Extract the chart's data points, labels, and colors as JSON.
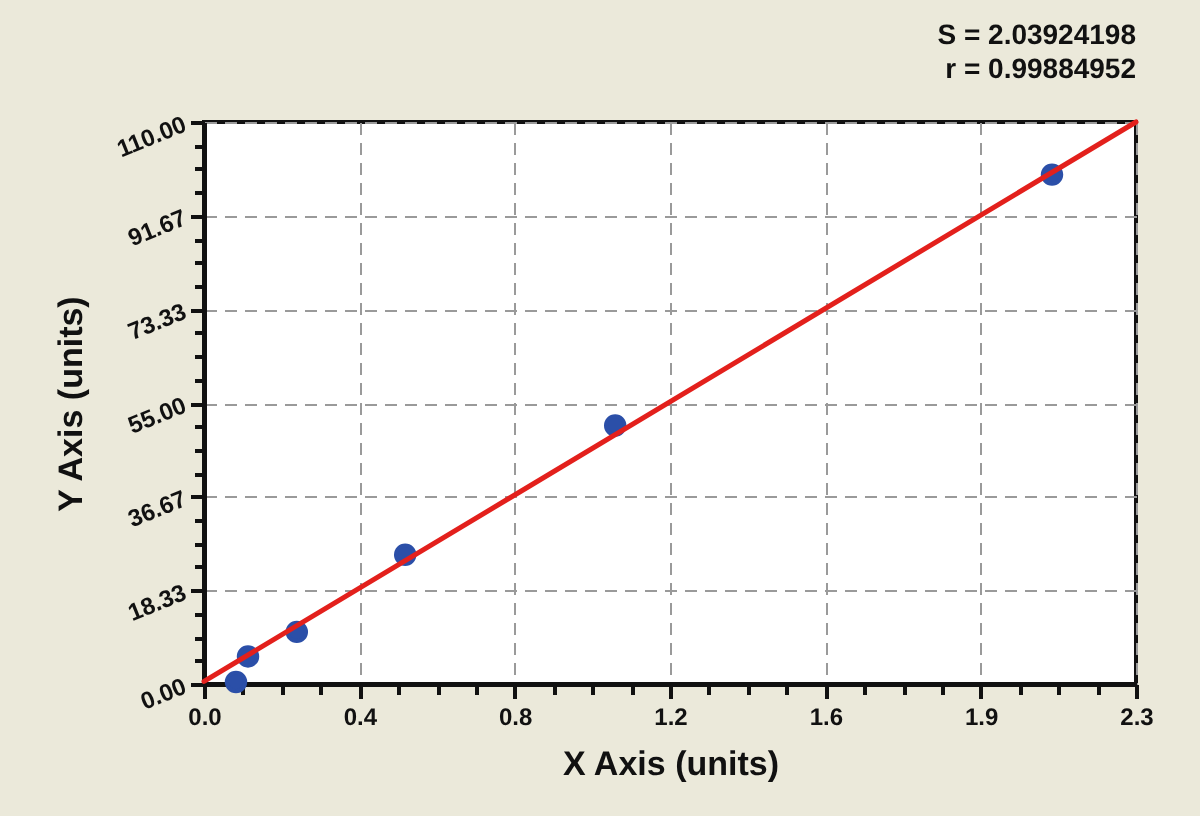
{
  "chart_data": {
    "type": "scatter",
    "xlabel": "X Axis (units)",
    "ylabel": "Y Axis (units)",
    "annotations": [
      "S = 2.03924198",
      "r = 0.99884952"
    ],
    "x": [
      0.08,
      0.11,
      0.232,
      0.503,
      1.028,
      2.12
    ],
    "series": [
      {
        "color": "#2b4fa8",
        "marker": "circle",
        "values": [
          0.4,
          5.4,
          10.2,
          25.3,
          50.6,
          99.7
        ]
      },
      {
        "type": "line",
        "color": "#e3201c",
        "marker": "none",
        "x": [
          0,
          2.33
        ],
        "values": [
          0.5,
          110
        ]
      }
    ],
    "xlim": [
      0,
      2.33
    ],
    "ylim": [
      0,
      110
    ],
    "xticks": [
      {
        "value": 0,
        "label": "0.0"
      },
      {
        "value": 0.0971,
        "label": null
      },
      {
        "value": 0.1942,
        "label": null
      },
      {
        "value": 0.2913,
        "label": null
      },
      {
        "value": 0.3883,
        "label": "0.4"
      },
      {
        "value": 0.4854,
        "label": null
      },
      {
        "value": 0.5825,
        "label": null
      },
      {
        "value": 0.6796,
        "label": null
      },
      {
        "value": 0.7767,
        "label": "0.8"
      },
      {
        "value": 0.8738,
        "label": null
      },
      {
        "value": 0.9708,
        "label": null
      },
      {
        "value": 1.0679,
        "label": null
      },
      {
        "value": 1.165,
        "label": "1.2"
      },
      {
        "value": 1.2621,
        "label": null
      },
      {
        "value": 1.3592,
        "label": null
      },
      {
        "value": 1.4563,
        "label": null
      },
      {
        "value": 1.5533,
        "label": "1.6"
      },
      {
        "value": 1.6504,
        "label": null
      },
      {
        "value": 1.7475,
        "label": null
      },
      {
        "value": 1.8446,
        "label": null
      },
      {
        "value": 1.9417,
        "label": "1.9"
      },
      {
        "value": 2.0388,
        "label": null
      },
      {
        "value": 2.1358,
        "label": null
      },
      {
        "value": 2.2329,
        "label": null
      },
      {
        "value": 2.33,
        "label": "2.3"
      }
    ],
    "yticks": [
      {
        "value": 0,
        "label": "0.00"
      },
      {
        "value": 4.583,
        "label": null
      },
      {
        "value": 9.167,
        "label": null
      },
      {
        "value": 13.75,
        "label": null
      },
      {
        "value": 18.333,
        "label": "18.33"
      },
      {
        "value": 22.917,
        "label": null
      },
      {
        "value": 27.5,
        "label": null
      },
      {
        "value": 32.083,
        "label": null
      },
      {
        "value": 36.667,
        "label": "36.67"
      },
      {
        "value": 41.25,
        "label": null
      },
      {
        "value": 45.833,
        "label": null
      },
      {
        "value": 50.417,
        "label": null
      },
      {
        "value": 55,
        "label": "55.00"
      },
      {
        "value": 59.583,
        "label": null
      },
      {
        "value": 64.167,
        "label": null
      },
      {
        "value": 68.75,
        "label": null
      },
      {
        "value": 73.333,
        "label": "73.33"
      },
      {
        "value": 77.917,
        "label": null
      },
      {
        "value": 82.5,
        "label": null
      },
      {
        "value": 87.083,
        "label": null
      },
      {
        "value": 91.667,
        "label": "91.67"
      },
      {
        "value": 96.25,
        "label": null
      },
      {
        "value": 100.833,
        "label": null
      },
      {
        "value": 105.417,
        "label": null
      },
      {
        "value": 110,
        "label": "110.00"
      }
    ],
    "grid": true
  }
}
